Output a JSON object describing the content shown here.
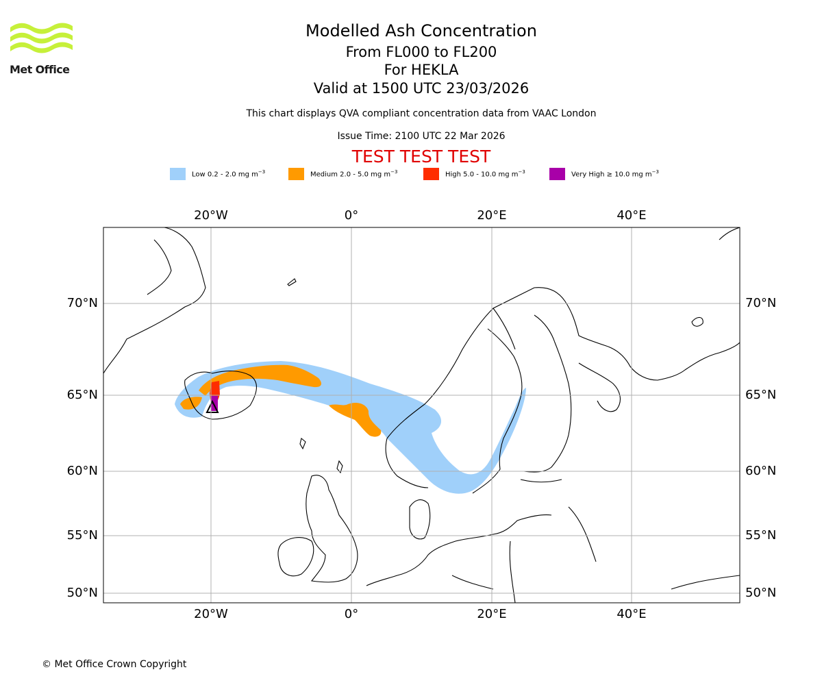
{
  "brand": {
    "logo_text": "Met Office"
  },
  "header": {
    "title": "Modelled Ash Concentration",
    "level": "From FL000 to FL200",
    "volcano": "For HEKLA",
    "valid": "Valid at 1500 UTC 23/03/2026",
    "description": "This chart displays QVA compliant concentration data from VAAC London",
    "issue_time": "Issue Time: 2100 UTC 22 Mar 2026",
    "test_banner": "TEST TEST TEST"
  },
  "legend": [
    {
      "label": "Low 0.2 - 2.0 mg m",
      "unit_exp": "−3",
      "color": "#a0d0fa"
    },
    {
      "label": "Medium 2.0 - 5.0 mg m",
      "unit_exp": "−3",
      "color": "#ff9a00"
    },
    {
      "label": "High 5.0 - 10.0 mg m",
      "unit_exp": "−3",
      "color": "#ff2d00"
    },
    {
      "label": "Very High  ≥  10.0 mg m",
      "unit_exp": "−3",
      "color": "#a800a8"
    }
  ],
  "map": {
    "lon_labels": [
      "20°W",
      "0°",
      "20°E",
      "40°E"
    ],
    "lat_labels": [
      "70°N",
      "65°N",
      "60°N",
      "55°N",
      "50°N"
    ],
    "volcano_marker": "volcano-triangle"
  },
  "footer": {
    "copyright": "© Met Office Crown Copyright"
  }
}
